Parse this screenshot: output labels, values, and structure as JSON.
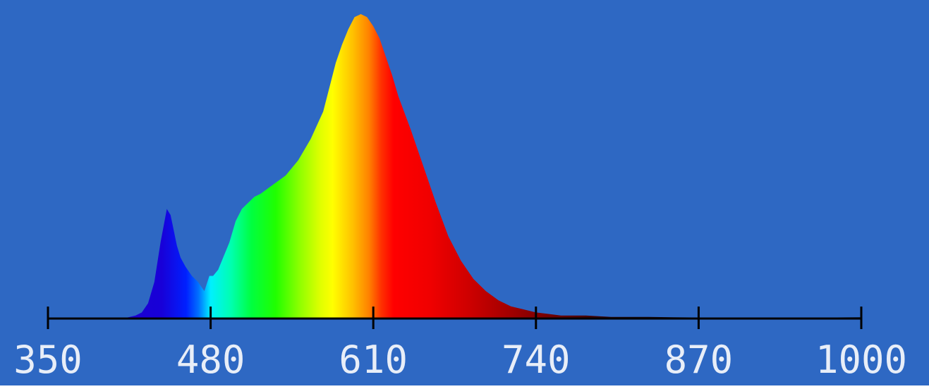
{
  "chart_data": {
    "type": "area",
    "title": "",
    "xlabel": "",
    "ylabel": "",
    "xlim": [
      350,
      1000
    ],
    "ylim": [
      0,
      1.0
    ],
    "x_ticks": [
      "350",
      "480",
      "610",
      "740",
      "870",
      "1000"
    ],
    "grid": false,
    "legend": "none",
    "fill": "wavelength-colored spectrum",
    "series": [
      {
        "x": [
          350,
          410,
          420,
          425,
          430,
          435,
          440,
          445,
          448,
          450,
          453,
          456,
          460,
          465,
          470,
          475,
          479,
          482,
          486,
          490,
          495,
          500,
          505,
          510,
          515,
          520,
          530,
          540,
          550,
          560,
          570,
          575,
          580,
          585,
          590,
          595,
          600,
          605,
          610,
          615,
          620,
          625,
          630,
          640,
          650,
          660,
          670,
          680,
          690,
          700,
          710,
          720,
          730,
          740,
          750,
          760,
          780,
          800,
          830,
          850,
          880,
          920,
          960,
          1000
        ],
        "y": [
          0.0,
          0.0,
          0.01,
          0.02,
          0.05,
          0.12,
          0.25,
          0.36,
          0.34,
          0.3,
          0.24,
          0.2,
          0.17,
          0.14,
          0.12,
          0.09,
          0.14,
          0.14,
          0.16,
          0.2,
          0.25,
          0.32,
          0.36,
          0.38,
          0.4,
          0.41,
          0.44,
          0.47,
          0.52,
          0.59,
          0.68,
          0.76,
          0.84,
          0.9,
          0.95,
          0.99,
          1.0,
          0.99,
          0.96,
          0.92,
          0.86,
          0.8,
          0.73,
          0.62,
          0.5,
          0.38,
          0.27,
          0.19,
          0.13,
          0.09,
          0.06,
          0.04,
          0.03,
          0.02,
          0.015,
          0.01,
          0.01,
          0.005,
          0.005,
          0.004,
          0.003,
          0.002,
          0.003,
          0.004
        ]
      }
    ]
  },
  "colors": {
    "background": "#2e68c3",
    "axis": "#000000",
    "tick_label": "#e8eef8"
  }
}
